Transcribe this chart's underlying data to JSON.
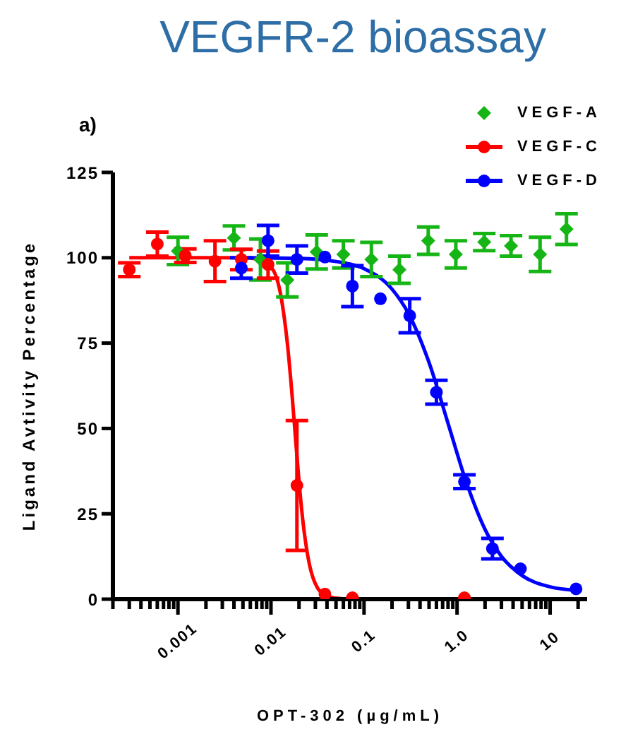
{
  "chart_data": {
    "type": "scatter",
    "title": "VEGFR-2 bioassay",
    "xlabel": "OPT-302 (µg/mL)",
    "ylabel": "Ligand Avtivity Percentage",
    "annotations": [
      "a)"
    ],
    "log": "x",
    "xlim": [
      0.0002,
      25
    ],
    "xticks": [
      {
        "value": 0.0002,
        "label": null
      },
      {
        "value": 0.0003,
        "label": null
      },
      {
        "value": 0.0004,
        "label": null
      },
      {
        "value": 0.0005,
        "label": null
      },
      {
        "value": 0.0006,
        "label": null
      },
      {
        "value": 0.0007,
        "label": null
      },
      {
        "value": 0.0008,
        "label": null
      },
      {
        "value": 0.0009,
        "label": null
      },
      {
        "value": 0.001,
        "label": "0.001"
      },
      {
        "value": 0.002,
        "label": null
      },
      {
        "value": 0.003,
        "label": null
      },
      {
        "value": 0.004,
        "label": null
      },
      {
        "value": 0.005,
        "label": null
      },
      {
        "value": 0.006,
        "label": null
      },
      {
        "value": 0.007,
        "label": null
      },
      {
        "value": 0.008,
        "label": null
      },
      {
        "value": 0.009,
        "label": null
      },
      {
        "value": 0.01,
        "label": "0.01"
      },
      {
        "value": 0.02,
        "label": null
      },
      {
        "value": 0.03,
        "label": null
      },
      {
        "value": 0.04,
        "label": null
      },
      {
        "value": 0.05,
        "label": null
      },
      {
        "value": 0.06,
        "label": null
      },
      {
        "value": 0.07,
        "label": null
      },
      {
        "value": 0.08,
        "label": null
      },
      {
        "value": 0.09,
        "label": null
      },
      {
        "value": 0.1,
        "label": "0.1"
      },
      {
        "value": 0.2,
        "label": null
      },
      {
        "value": 0.3,
        "label": null
      },
      {
        "value": 0.4,
        "label": null
      },
      {
        "value": 0.5,
        "label": null
      },
      {
        "value": 0.6,
        "label": null
      },
      {
        "value": 0.7,
        "label": null
      },
      {
        "value": 0.8,
        "label": null
      },
      {
        "value": 0.9,
        "label": null
      },
      {
        "value": 1,
        "label": "1.0"
      },
      {
        "value": 2,
        "label": null
      },
      {
        "value": 3,
        "label": null
      },
      {
        "value": 4,
        "label": null
      },
      {
        "value": 5,
        "label": null
      },
      {
        "value": 6,
        "label": null
      },
      {
        "value": 7,
        "label": null
      },
      {
        "value": 8,
        "label": null
      },
      {
        "value": 9,
        "label": null
      },
      {
        "value": 10,
        "label": "10"
      },
      {
        "value": 20,
        "label": null
      }
    ],
    "ylim": [
      0,
      125
    ],
    "yticks": [
      0,
      25,
      50,
      75,
      100,
      125
    ],
    "grid": false,
    "legend": "top right",
    "series": [
      {
        "name": "VEGF-A",
        "marker": "diamond",
        "color": "#16b516",
        "x": [
          0.001,
          0.004,
          0.0077,
          0.015,
          0.031,
          0.06,
          0.12,
          0.24,
          0.49,
          0.97,
          1.96,
          3.8,
          7.8,
          15
        ],
        "values": [
          102,
          105.8,
          99.5,
          93.5,
          101.7,
          101,
          99.5,
          96.5,
          105,
          101,
          104.6,
          103.5,
          101,
          108.4
        ],
        "errors": [
          4,
          3.5,
          6,
          5,
          5,
          4,
          5,
          4,
          4,
          4,
          2.5,
          3,
          5,
          4.5
        ]
      },
      {
        "name": "VEGF-C",
        "marker": "circle",
        "color": "#ff0000",
        "x": [
          0.0003,
          0.0006,
          0.0012,
          0.0025,
          0.0048,
          0.0093,
          0.019,
          0.038,
          0.075,
          1.2
        ],
        "values": [
          96.5,
          104,
          100.6,
          99,
          99.5,
          98,
          33.3,
          1.5,
          0.4,
          0.4
        ],
        "errors": [
          2,
          3.5,
          2,
          6,
          3,
          4,
          19,
          null,
          null,
          null
        ]
      },
      {
        "name": "VEGF-D",
        "marker": "circle",
        "color": "#0000ff",
        "x": [
          0.0048,
          0.0093,
          0.019,
          0.038,
          0.075,
          0.15,
          0.31,
          0.6,
          1.2,
          2.4,
          4.8,
          19
        ],
        "values": [
          97,
          105,
          99.5,
          100.2,
          91.7,
          88,
          83,
          60.6,
          34.4,
          14.8,
          8.9,
          3
        ],
        "errors": [
          3,
          4.5,
          4,
          null,
          6,
          null,
          5,
          3.5,
          2,
          3,
          null,
          null
        ]
      },
      {
        "type": "line",
        "color": "#ff0000",
        "x": [
          0.0003,
          0.003,
          0.006,
          0.01,
          0.013,
          0.015,
          0.017,
          0.018,
          0.02,
          0.022,
          0.025,
          0.03,
          0.04,
          0.06,
          1.2
        ],
        "values": [
          100,
          100,
          99.9,
          97.2,
          87.7,
          74.9,
          58.5,
          50,
          34.6,
          23,
          12.3,
          4.5,
          0.8,
          0.1,
          0
        ]
      },
      {
        "type": "line",
        "color": "#0000ff",
        "x": [
          0.005,
          0.02,
          0.05,
          0.1,
          0.2,
          0.3,
          0.5,
          0.8,
          1.2,
          2,
          3,
          5,
          10,
          19
        ],
        "values": [
          100,
          99.8,
          98.9,
          96.8,
          90.8,
          83.7,
          69.3,
          51.5,
          35.9,
          20.4,
          12.5,
          6.9,
          3.6,
          2.6
        ]
      }
    ]
  }
}
